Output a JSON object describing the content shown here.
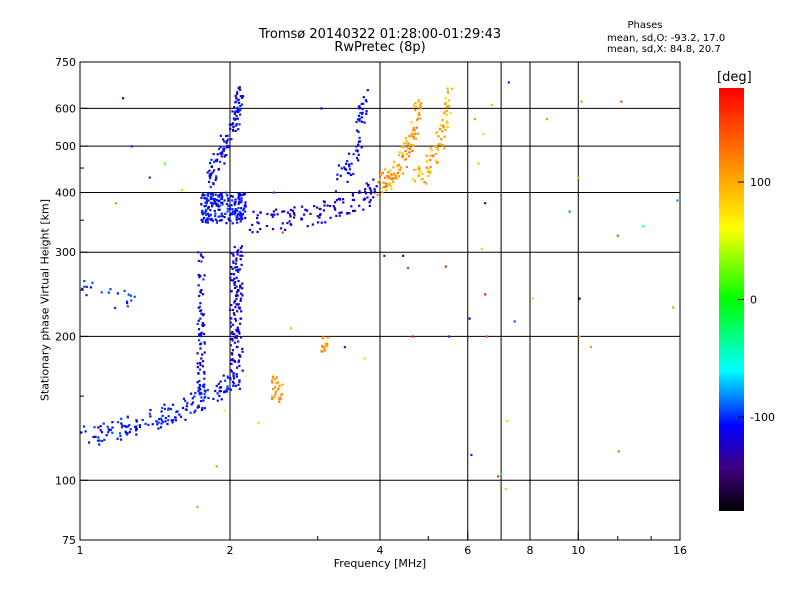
{
  "title_line1": "Tromsø 20140322 01:28:00-01:29:43",
  "title_line2": "RwPretec (8p)",
  "phase_stats": {
    "heading": "Phases",
    "o_mode": "mean, sd,O:  -93.2, 17.0",
    "x_mode": "mean, sd,X:  84.8, 20.7"
  },
  "colorbar": {
    "unit": "[deg]",
    "tick_labels": [
      "100",
      "0",
      "-100"
    ],
    "tick_values": [
      100,
      0,
      -100
    ],
    "range": [
      -180,
      180
    ]
  },
  "chart_data": {
    "type": "scatter",
    "xlabel": "Frequency [MHz]",
    "ylabel": "Stationary phase Virtual Height [km]",
    "xscale": "log",
    "yscale": "log",
    "xlim": [
      1,
      16
    ],
    "ylim": [
      75,
      750
    ],
    "x_ticks": [
      1,
      2,
      4,
      6,
      8,
      10,
      16
    ],
    "x_tick_labels": [
      "1",
      "2",
      "4",
      "6",
      "8",
      "10",
      "16"
    ],
    "x_grid": [
      2,
      4,
      6,
      7,
      8,
      10
    ],
    "y_ticks": [
      75,
      100,
      200,
      300,
      400,
      500,
      600,
      750
    ],
    "y_tick_labels": [
      "75",
      "100",
      "200",
      "300",
      "400",
      "500",
      "600",
      "750"
    ],
    "y_grid": [
      100,
      200,
      300,
      400,
      500,
      600
    ],
    "grid": true,
    "color_by": "phase (deg)",
    "traces": [
      {
        "shape": "curve",
        "x": [
          1.0,
          1.2,
          1.45,
          1.65,
          1.85,
          2.05
        ],
        "y": [
          123,
          128,
          135,
          143,
          152,
          162
        ],
        "phase": -105,
        "spread": 12,
        "n": 170
      },
      {
        "shape": "column",
        "x": [
          1.72,
          1.78
        ],
        "y": [
          150,
          300
        ],
        "phase": -110,
        "spread": 14,
        "n": 80
      },
      {
        "shape": "column",
        "x": [
          2.0,
          2.12
        ],
        "y": [
          150,
          310
        ],
        "phase": -118,
        "spread": 14,
        "n": 140
      },
      {
        "shape": "column",
        "x": [
          1.75,
          2.15
        ],
        "y": [
          345,
          400
        ],
        "phase": -108,
        "spread": 14,
        "n": 200
      },
      {
        "shape": "curve",
        "x": [
          1.82,
          1.95,
          2.05,
          2.1
        ],
        "y": [
          430,
          500,
          570,
          640
        ],
        "phase": -110,
        "spread": 12,
        "n": 110
      },
      {
        "shape": "curve",
        "x": [
          2.2,
          2.6,
          3.0,
          3.4,
          3.75,
          3.95
        ],
        "y": [
          345,
          352,
          362,
          375,
          392,
          412
        ],
        "phase": -120,
        "spread": 14,
        "n": 120
      },
      {
        "shape": "curve",
        "x": [
          3.3,
          3.55,
          3.65,
          3.72
        ],
        "y": [
          420,
          470,
          540,
          640
        ],
        "phase": -110,
        "spread": 12,
        "n": 60
      },
      {
        "shape": "curve",
        "x": [
          4.0,
          4.3,
          4.6,
          4.85
        ],
        "y": [
          415,
          440,
          500,
          640
        ],
        "phase": 110,
        "spread": 25,
        "n": 110
      },
      {
        "shape": "curve",
        "x": [
          4.6,
          5.0,
          5.3,
          5.5
        ],
        "y": [
          415,
          450,
          520,
          640
        ],
        "phase": 100,
        "spread": 25,
        "n": 80
      },
      {
        "shape": "curve",
        "x": [
          1.0,
          1.12,
          1.22,
          1.3
        ],
        "y": [
          250,
          245,
          240,
          235
        ],
        "phase": -100,
        "spread": 10,
        "n": 20
      },
      {
        "shape": "blob",
        "x": [
          2.42,
          2.55
        ],
        "y": [
          145,
          165
        ],
        "phase": 110,
        "spread": 15,
        "n": 25
      },
      {
        "shape": "blob",
        "x": [
          3.05,
          3.15
        ],
        "y": [
          185,
          200
        ],
        "phase": 110,
        "spread": 15,
        "n": 15
      }
    ],
    "points": [
      {
        "x": 1.22,
        "y": 630,
        "phase": -150
      },
      {
        "x": 1.27,
        "y": 500,
        "phase": -100
      },
      {
        "x": 1.48,
        "y": 460,
        "phase": 20
      },
      {
        "x": 1.38,
        "y": 430,
        "phase": -100
      },
      {
        "x": 1.6,
        "y": 405,
        "phase": 80
      },
      {
        "x": 1.18,
        "y": 380,
        "phase": 110
      },
      {
        "x": 1.72,
        "y": 88,
        "phase": 110
      },
      {
        "x": 1.88,
        "y": 107,
        "phase": 110
      },
      {
        "x": 1.95,
        "y": 140,
        "phase": 70
      },
      {
        "x": 2.28,
        "y": 132,
        "phase": 80
      },
      {
        "x": 2.55,
        "y": 330,
        "phase": 150
      },
      {
        "x": 2.45,
        "y": 400,
        "phase": -90
      },
      {
        "x": 2.65,
        "y": 208,
        "phase": 30
      },
      {
        "x": 3.05,
        "y": 600,
        "phase": -120
      },
      {
        "x": 3.4,
        "y": 190,
        "phase": -100
      },
      {
        "x": 3.72,
        "y": 180,
        "phase": 80
      },
      {
        "x": 4.08,
        "y": 295,
        "phase": -100
      },
      {
        "x": 4.45,
        "y": 295,
        "phase": -120
      },
      {
        "x": 4.55,
        "y": 278,
        "phase": 150
      },
      {
        "x": 4.65,
        "y": 200,
        "phase": 170
      },
      {
        "x": 5.42,
        "y": 280,
        "phase": 160
      },
      {
        "x": 5.5,
        "y": 200,
        "phase": -100
      },
      {
        "x": 6.05,
        "y": 218,
        "phase": -120
      },
      {
        "x": 6.1,
        "y": 113,
        "phase": -100
      },
      {
        "x": 6.5,
        "y": 245,
        "phase": 170
      },
      {
        "x": 6.55,
        "y": 200,
        "phase": 150
      },
      {
        "x": 6.7,
        "y": 610,
        "phase": 30
      },
      {
        "x": 6.9,
        "y": 102,
        "phase": 160
      },
      {
        "x": 7.0,
        "y": 103,
        "phase": -20
      },
      {
        "x": 7.15,
        "y": 96,
        "phase": 40
      },
      {
        "x": 7.2,
        "y": 133,
        "phase": 80
      },
      {
        "x": 7.25,
        "y": 680,
        "phase": -100
      },
      {
        "x": 7.45,
        "y": 215,
        "phase": -90
      },
      {
        "x": 6.3,
        "y": 460,
        "phase": 30
      },
      {
        "x": 6.45,
        "y": 530,
        "phase": 80
      },
      {
        "x": 6.5,
        "y": 380,
        "phase": -130
      },
      {
        "x": 6.4,
        "y": 305,
        "phase": 80
      },
      {
        "x": 6.2,
        "y": 570,
        "phase": 110
      },
      {
        "x": 8.65,
        "y": 570,
        "phase": 110
      },
      {
        "x": 9.6,
        "y": 365,
        "phase": -80
      },
      {
        "x": 10.05,
        "y": 240,
        "phase": -180
      },
      {
        "x": 10.15,
        "y": 620,
        "phase": 110
      },
      {
        "x": 10.05,
        "y": 200,
        "phase": 110
      },
      {
        "x": 10.6,
        "y": 190,
        "phase": 110
      },
      {
        "x": 12.2,
        "y": 620,
        "phase": 150
      },
      {
        "x": 12.0,
        "y": 325,
        "phase": 140
      },
      {
        "x": 12.05,
        "y": 115,
        "phase": 130
      },
      {
        "x": 13.5,
        "y": 340,
        "phase": -60
      },
      {
        "x": 15.5,
        "y": 230,
        "phase": 110
      },
      {
        "x": 15.8,
        "y": 385,
        "phase": -80
      },
      {
        "x": 8.1,
        "y": 240,
        "phase": 40
      },
      {
        "x": 10.0,
        "y": 430,
        "phase": 100
      }
    ]
  }
}
